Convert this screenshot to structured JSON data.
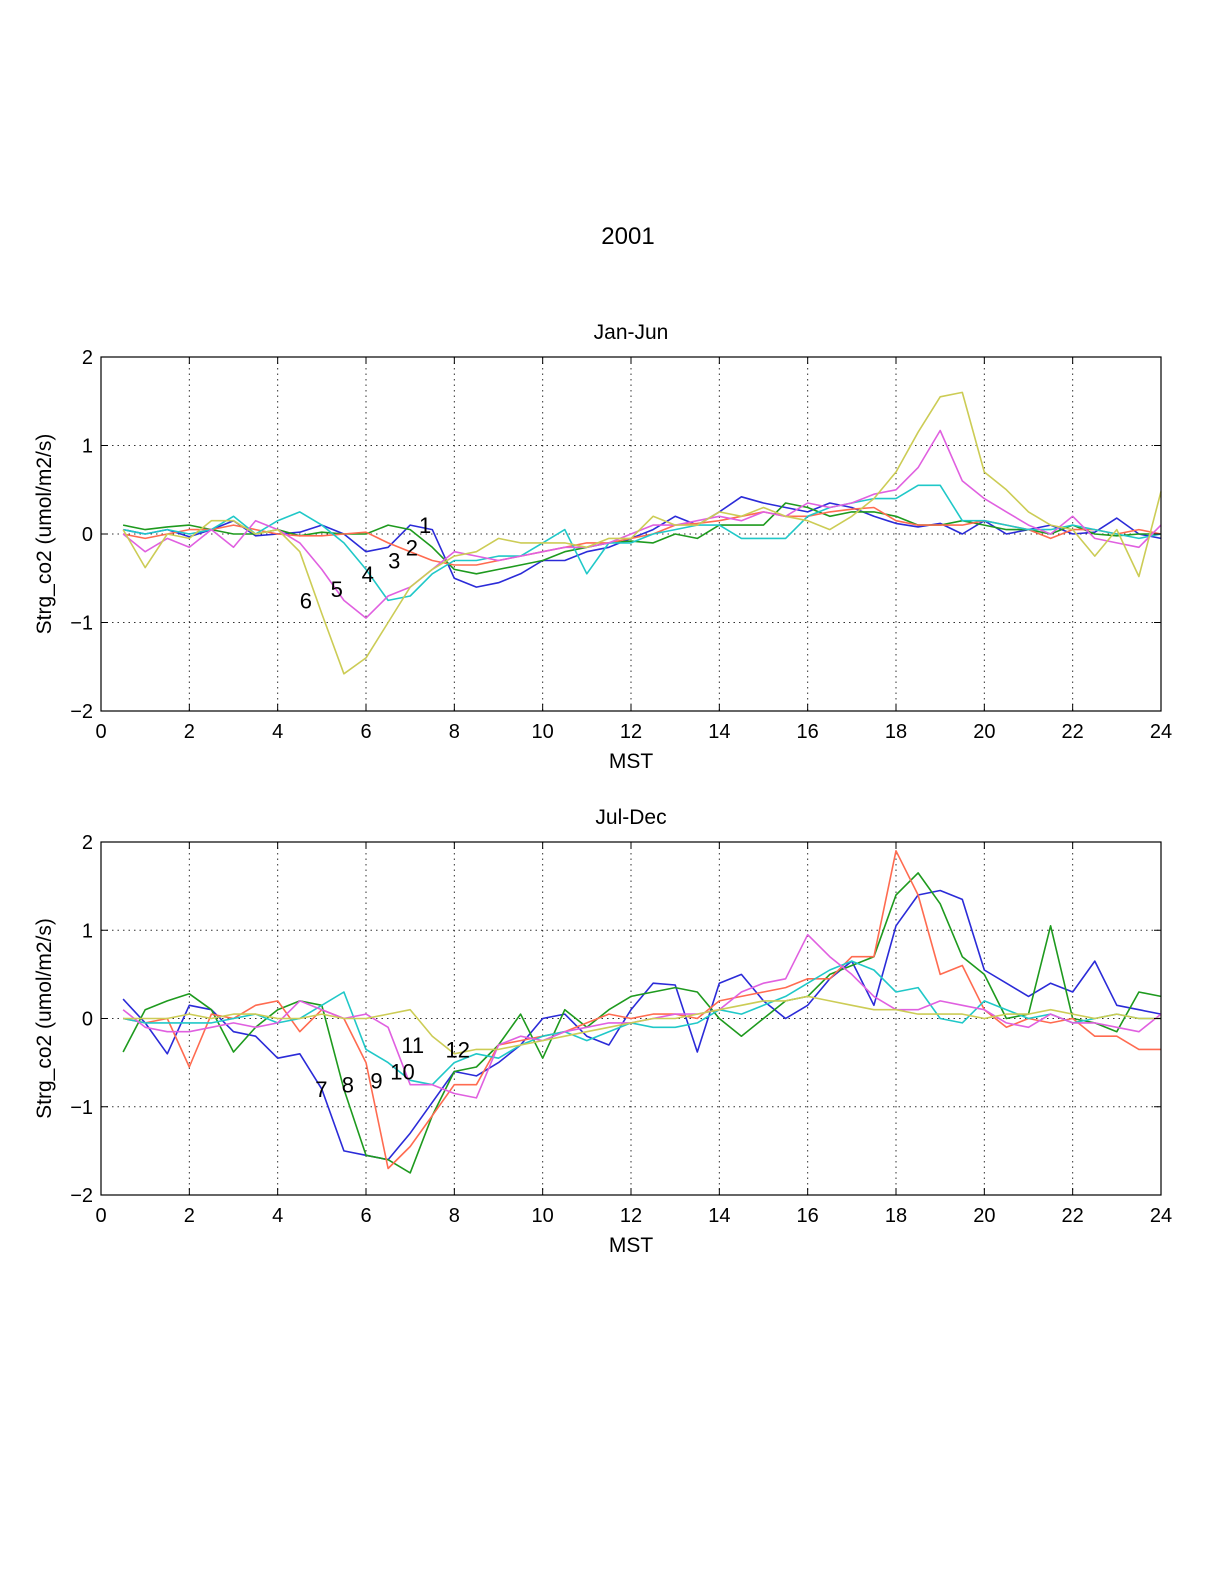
{
  "figure_title": "2001",
  "chart_data": [
    {
      "type": "line",
      "title": "Jan-Jun",
      "xlabel": "MST",
      "ylabel": "Strg_co2 (umol/m2/s)",
      "xlim": [
        0,
        24
      ],
      "ylim": [
        -2,
        2
      ],
      "xticks": [
        0,
        2,
        4,
        6,
        8,
        10,
        12,
        14,
        16,
        18,
        20,
        22,
        24
      ],
      "yticks": [
        -2,
        -1,
        0,
        1,
        2
      ],
      "grid": true,
      "x": [
        0.5,
        1,
        1.5,
        2,
        2.5,
        3,
        3.5,
        4,
        4.5,
        5,
        5.5,
        6,
        6.5,
        7,
        7.5,
        8,
        8.5,
        9,
        9.5,
        10,
        10.5,
        11,
        11.5,
        12,
        12.5,
        13,
        13.5,
        14,
        14.5,
        15,
        15.5,
        16,
        16.5,
        17,
        17.5,
        18,
        18.5,
        19,
        19.5,
        20,
        20.5,
        21,
        21.5,
        22,
        22.5,
        23,
        23.5,
        24
      ],
      "series": [
        {
          "name": "1",
          "color": "#2b2bd8",
          "values": [
            0.05,
            0.0,
            0.05,
            -0.03,
            0.05,
            0.15,
            -0.02,
            0.0,
            0.02,
            0.1,
            0.0,
            -0.2,
            -0.15,
            0.1,
            0.05,
            -0.5,
            -0.6,
            -0.55,
            -0.45,
            -0.3,
            -0.3,
            -0.2,
            -0.15,
            -0.05,
            0.05,
            0.2,
            0.1,
            0.25,
            0.42,
            0.35,
            0.3,
            0.25,
            0.35,
            0.3,
            0.2,
            0.12,
            0.08,
            0.12,
            0.0,
            0.15,
            0.0,
            0.05,
            0.1,
            0.0,
            0.02,
            0.18,
            0.0,
            -0.05
          ]
        },
        {
          "name": "2",
          "color": "#1e9a1e",
          "values": [
            0.1,
            0.05,
            0.08,
            0.1,
            0.05,
            0.0,
            0.0,
            0.05,
            -0.02,
            0.02,
            0.0,
            0.0,
            0.1,
            0.05,
            -0.15,
            -0.4,
            -0.45,
            -0.4,
            -0.35,
            -0.3,
            -0.2,
            -0.15,
            -0.1,
            -0.08,
            -0.1,
            0.0,
            -0.05,
            0.1,
            0.1,
            0.1,
            0.35,
            0.3,
            0.2,
            0.25,
            0.25,
            0.2,
            0.1,
            0.1,
            0.15,
            0.1,
            0.05,
            0.05,
            0.0,
            0.1,
            0.0,
            -0.02,
            0.0,
            0.0
          ]
        },
        {
          "name": "3",
          "color": "#ff6b50",
          "values": [
            0.0,
            -0.05,
            0.0,
            0.05,
            0.05,
            0.1,
            0.05,
            0.0,
            -0.02,
            -0.02,
            0.0,
            0.02,
            -0.1,
            -0.2,
            -0.3,
            -0.35,
            -0.35,
            -0.3,
            -0.25,
            -0.2,
            -0.15,
            -0.1,
            -0.1,
            -0.05,
            0.0,
            0.1,
            0.12,
            0.15,
            0.2,
            0.25,
            0.2,
            0.2,
            0.25,
            0.28,
            0.3,
            0.15,
            0.1,
            0.1,
            0.1,
            0.15,
            0.1,
            0.05,
            -0.05,
            0.05,
            0.05,
            0.0,
            0.05,
            0.0
          ]
        },
        {
          "name": "4",
          "color": "#20c8c8",
          "values": [
            0.05,
            0.0,
            0.05,
            0.0,
            0.05,
            0.2,
            0.0,
            0.15,
            0.25,
            0.1,
            -0.1,
            -0.4,
            -0.75,
            -0.7,
            -0.45,
            -0.3,
            -0.3,
            -0.25,
            -0.25,
            -0.1,
            0.05,
            -0.45,
            -0.1,
            -0.1,
            0.0,
            0.05,
            0.1,
            0.1,
            -0.05,
            -0.05,
            -0.05,
            0.2,
            0.3,
            0.35,
            0.4,
            0.4,
            0.55,
            0.55,
            0.15,
            0.15,
            0.1,
            0.05,
            0.05,
            0.1,
            0.05,
            0.0,
            -0.05,
            0.0
          ]
        },
        {
          "name": "5",
          "color": "#e060e0",
          "values": [
            0.0,
            -0.2,
            -0.05,
            -0.15,
            0.05,
            -0.15,
            0.15,
            0.05,
            -0.1,
            -0.4,
            -0.75,
            -0.95,
            -0.7,
            -0.6,
            -0.4,
            -0.2,
            -0.25,
            -0.3,
            -0.25,
            -0.2,
            -0.15,
            -0.15,
            -0.1,
            0.0,
            0.1,
            0.1,
            0.15,
            0.2,
            0.15,
            0.25,
            0.2,
            0.35,
            0.3,
            0.35,
            0.45,
            0.5,
            0.75,
            1.17,
            0.6,
            0.4,
            0.25,
            0.1,
            0.0,
            0.2,
            -0.05,
            -0.1,
            -0.15,
            0.1
          ]
        },
        {
          "name": "6",
          "color": "#cccc55",
          "values": [
            0.05,
            -0.38,
            0.0,
            -0.05,
            0.15,
            0.15,
            0.0,
            0.05,
            -0.2,
            -0.9,
            -1.58,
            -1.4,
            -1.0,
            -0.6,
            -0.4,
            -0.25,
            -0.2,
            -0.05,
            -0.1,
            -0.1,
            -0.1,
            -0.15,
            -0.05,
            -0.05,
            0.2,
            0.1,
            0.1,
            0.25,
            0.2,
            0.3,
            0.2,
            0.15,
            0.05,
            0.2,
            0.4,
            0.7,
            1.15,
            1.55,
            1.6,
            0.7,
            0.5,
            0.25,
            0.1,
            0.05,
            -0.25,
            0.05,
            -0.48,
            0.48
          ]
        }
      ],
      "curve_labels": [
        {
          "text": "1",
          "x": 7.2,
          "y": 0.1
        },
        {
          "text": "2",
          "x": 6.9,
          "y": -0.15
        },
        {
          "text": "3",
          "x": 6.5,
          "y": -0.3
        },
        {
          "text": "4",
          "x": 5.9,
          "y": -0.45
        },
        {
          "text": "5",
          "x": 5.2,
          "y": -0.62
        },
        {
          "text": "6",
          "x": 4.5,
          "y": -0.75
        }
      ]
    },
    {
      "type": "line",
      "title": "Jul-Dec",
      "xlabel": "MST",
      "ylabel": "Strg_co2 (umol/m2/s)",
      "xlim": [
        0,
        24
      ],
      "ylim": [
        -2,
        2
      ],
      "xticks": [
        0,
        2,
        4,
        6,
        8,
        10,
        12,
        14,
        16,
        18,
        20,
        22,
        24
      ],
      "yticks": [
        -2,
        -1,
        0,
        1,
        2
      ],
      "grid": true,
      "x": [
        0.5,
        1,
        1.5,
        2,
        2.5,
        3,
        3.5,
        4,
        4.5,
        5,
        5.5,
        6,
        6.5,
        7,
        7.5,
        8,
        8.5,
        9,
        9.5,
        10,
        10.5,
        11,
        11.5,
        12,
        12.5,
        13,
        13.5,
        14,
        14.5,
        15,
        15.5,
        16,
        16.5,
        17,
        17.5,
        18,
        18.5,
        19,
        19.5,
        20,
        20.5,
        21,
        21.5,
        22,
        22.5,
        23,
        23.5,
        24
      ],
      "series": [
        {
          "name": "7",
          "color": "#2b2bd8",
          "values": [
            0.22,
            -0.05,
            -0.4,
            0.15,
            0.1,
            -0.15,
            -0.2,
            -0.45,
            -0.4,
            -0.8,
            -1.5,
            -1.55,
            -1.6,
            -1.3,
            -0.95,
            -0.6,
            -0.65,
            -0.5,
            -0.3,
            0.0,
            0.05,
            -0.2,
            -0.3,
            0.1,
            0.4,
            0.38,
            -0.38,
            0.4,
            0.5,
            0.2,
            0.0,
            0.15,
            0.45,
            0.65,
            0.15,
            1.05,
            1.4,
            1.45,
            1.35,
            0.55,
            0.4,
            0.25,
            0.4,
            0.3,
            0.65,
            0.15,
            0.1,
            0.05
          ]
        },
        {
          "name": "8",
          "color": "#1e9a1e",
          "values": [
            -0.38,
            0.1,
            0.2,
            0.28,
            0.1,
            -0.38,
            -0.1,
            0.1,
            0.2,
            0.15,
            -0.8,
            -1.55,
            -1.6,
            -1.75,
            -1.1,
            -0.6,
            -0.55,
            -0.3,
            0.05,
            -0.45,
            0.1,
            -0.1,
            0.1,
            0.25,
            0.3,
            0.35,
            0.3,
            0.0,
            -0.2,
            0.0,
            0.2,
            0.25,
            0.5,
            0.6,
            0.7,
            1.4,
            1.65,
            1.3,
            0.7,
            0.5,
            0.0,
            0.05,
            1.05,
            0.0,
            -0.05,
            -0.15,
            0.3,
            0.25
          ]
        },
        {
          "name": "9",
          "color": "#ff6b50",
          "values": [
            0.0,
            -0.05,
            0.0,
            -0.55,
            0.05,
            0.0,
            0.15,
            0.2,
            -0.15,
            0.1,
            0.0,
            -0.5,
            -1.7,
            -1.45,
            -1.1,
            -0.75,
            -0.75,
            -0.3,
            -0.25,
            -0.2,
            -0.15,
            -0.05,
            0.05,
            0.0,
            0.05,
            0.05,
            0.0,
            0.2,
            0.25,
            0.3,
            0.35,
            0.45,
            0.45,
            0.7,
            0.7,
            1.9,
            1.4,
            0.5,
            0.6,
            0.1,
            -0.1,
            0.0,
            -0.05,
            0.0,
            -0.2,
            -0.2,
            -0.35,
            -0.35
          ]
        },
        {
          "name": "10",
          "color": "#20c8c8",
          "values": [
            0.0,
            -0.05,
            -0.05,
            -0.05,
            -0.05,
            0.0,
            0.05,
            -0.05,
            0.0,
            0.15,
            0.3,
            -0.35,
            -0.5,
            -0.7,
            -0.75,
            -0.5,
            -0.4,
            -0.45,
            -0.3,
            -0.2,
            -0.15,
            -0.25,
            -0.15,
            -0.05,
            -0.1,
            -0.1,
            -0.05,
            0.1,
            0.05,
            0.15,
            0.25,
            0.4,
            0.55,
            0.65,
            0.55,
            0.3,
            0.35,
            0.0,
            -0.05,
            0.2,
            0.1,
            0.0,
            0.05,
            -0.05,
            0.0,
            0.05,
            0.0,
            0.0
          ]
        },
        {
          "name": "11",
          "color": "#e060e0",
          "values": [
            0.1,
            -0.1,
            -0.15,
            -0.15,
            -0.1,
            -0.05,
            -0.1,
            -0.05,
            0.2,
            0.1,
            0.0,
            0.05,
            -0.1,
            -0.75,
            -0.75,
            -0.85,
            -0.9,
            -0.3,
            -0.2,
            -0.25,
            -0.15,
            -0.1,
            -0.05,
            -0.05,
            0.0,
            0.05,
            0.05,
            0.1,
            0.3,
            0.4,
            0.45,
            0.95,
            0.7,
            0.5,
            0.25,
            0.1,
            0.1,
            0.2,
            0.15,
            0.1,
            -0.05,
            -0.1,
            0.05,
            -0.05,
            -0.05,
            -0.1,
            -0.15,
            0.05
          ]
        },
        {
          "name": "12",
          "color": "#cccc55",
          "values": [
            0.0,
            0.0,
            0.0,
            0.05,
            0.0,
            0.05,
            0.05,
            0.0,
            0.0,
            0.05,
            0.0,
            0.0,
            0.05,
            0.1,
            -0.2,
            -0.4,
            -0.35,
            -0.35,
            -0.3,
            -0.25,
            -0.2,
            -0.15,
            -0.1,
            -0.05,
            0.0,
            0.0,
            0.05,
            0.1,
            0.15,
            0.2,
            0.2,
            0.25,
            0.2,
            0.15,
            0.1,
            0.1,
            0.05,
            0.05,
            0.05,
            0.0,
            0.05,
            0.05,
            0.1,
            0.05,
            0.0,
            0.05,
            0.0,
            0.0
          ]
        }
      ],
      "curve_labels": [
        {
          "text": "7",
          "x": 4.85,
          "y": -0.8
        },
        {
          "text": "8",
          "x": 5.45,
          "y": -0.75
        },
        {
          "text": "9",
          "x": 6.1,
          "y": -0.7
        },
        {
          "text": "10",
          "x": 6.55,
          "y": -0.6
        },
        {
          "text": "11",
          "x": 6.8,
          "y": -0.3
        },
        {
          "text": "12",
          "x": 7.8,
          "y": -0.35
        }
      ]
    }
  ]
}
